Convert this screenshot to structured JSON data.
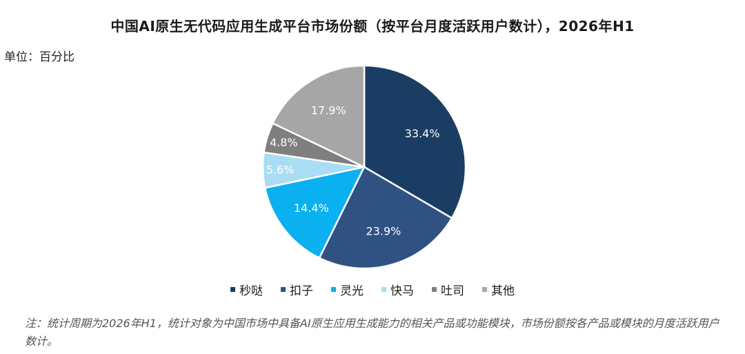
{
  "chart_data": {
    "type": "pie",
    "title": "中国AI原生无代码应用生成平台市场份额（按平台月度活跃用户数计），2026年H1",
    "unit_label": "单位：百分比",
    "categories": [
      "秒哒",
      "扣子",
      "灵光",
      "快马",
      "吐司",
      "其他"
    ],
    "values": [
      33.4,
      23.9,
      14.4,
      5.6,
      4.8,
      17.9
    ],
    "data_labels": [
      "33.4%",
      "23.9%",
      "14.4%",
      "5.6%",
      "4.8%",
      "17.9%"
    ],
    "colors": [
      "#1b3d63",
      "#2f5283",
      "#0bb0f0",
      "#a9ddf3",
      "#7f7f7f",
      "#a6a6a6"
    ],
    "label_colors": [
      "#ffffff",
      "#ffffff",
      "#ffffff",
      "#ffffff",
      "#ffffff",
      "#ffffff"
    ],
    "legend_position": "bottom",
    "start_angle_deg": 0,
    "direction": "clockwise",
    "note": "注：统计周期为2026年H1，统计对象为中国市场中具备AI原生应用生成能力的相关产品或功能模块，市场份额按各产品或模块的月度活跃用户数计。"
  }
}
